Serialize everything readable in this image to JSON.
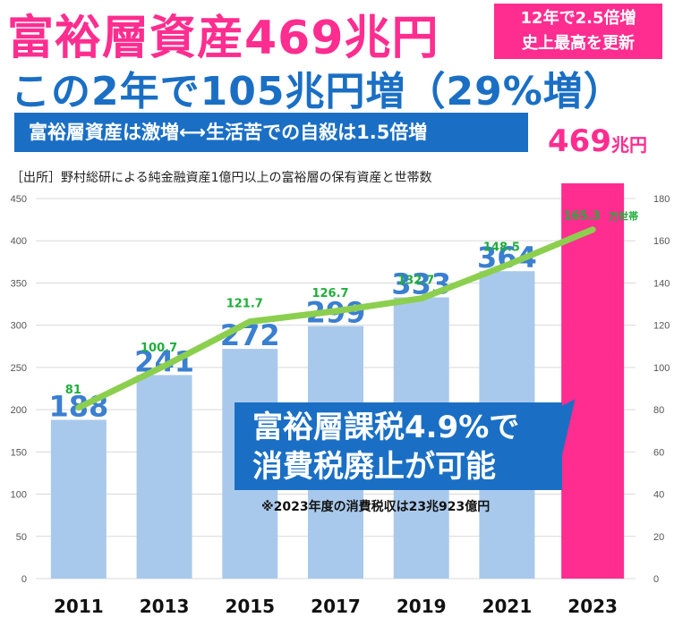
{
  "header": {
    "headline": "富裕層資産469兆円",
    "badge_line1": "12年で2.5倍増",
    "badge_line2": "史上最高を更新",
    "subhead": "この2年で105兆円増（29%増）",
    "banner": "富裕層資産は激増⟷生活苦での自殺は1.5倍増",
    "total_num": "469",
    "total_unit": "兆円",
    "source": "［出所］野村総研による純金融資産1億円以上の富裕層の保有資産と世帯数"
  },
  "callout": {
    "line1": "富裕層課税4.9%で",
    "line2": "消費税廃止が可能",
    "note": "※2023年度の消費税収は23兆923億円"
  },
  "chart_data": {
    "type": "bar+line",
    "categories": [
      "2011",
      "2013",
      "2015",
      "2017",
      "2019",
      "2021",
      "2023"
    ],
    "series": [
      {
        "name": "",
        "kind": "bar",
        "axis": "left",
        "values": [
          188,
          241,
          272,
          299,
          333,
          364,
          469
        ],
        "labels": [
          "188",
          "241",
          "272",
          "299",
          "333",
          "364",
          ""
        ]
      },
      {
        "name": "",
        "kind": "line",
        "axis": "right",
        "values": [
          81,
          100.7,
          121.7,
          126.7,
          132.7,
          148.5,
          165.3
        ],
        "labels": [
          "81",
          "100.7",
          "121.7",
          "126.7",
          "132.7",
          "148.5",
          "165.3"
        ],
        "last_unit": "万世帯"
      }
    ],
    "y_left": {
      "min": 0,
      "max": 450,
      "ticks": [
        "0",
        "50",
        "100",
        "150",
        "200",
        "250",
        "300",
        "350",
        "400",
        "450"
      ]
    },
    "y_right": {
      "min": 0,
      "max": 180,
      "ticks": [
        "0",
        "20",
        "40",
        "60",
        "80",
        "100",
        "120",
        "140",
        "160",
        "180"
      ]
    },
    "grid": true,
    "colors": {
      "bar": "#a9c9ec",
      "bar_highlight": "#ff2d8f",
      "bar_label": "#3a7fd0",
      "line": "#8ccf4f",
      "line_label": "#1fae3a"
    }
  }
}
